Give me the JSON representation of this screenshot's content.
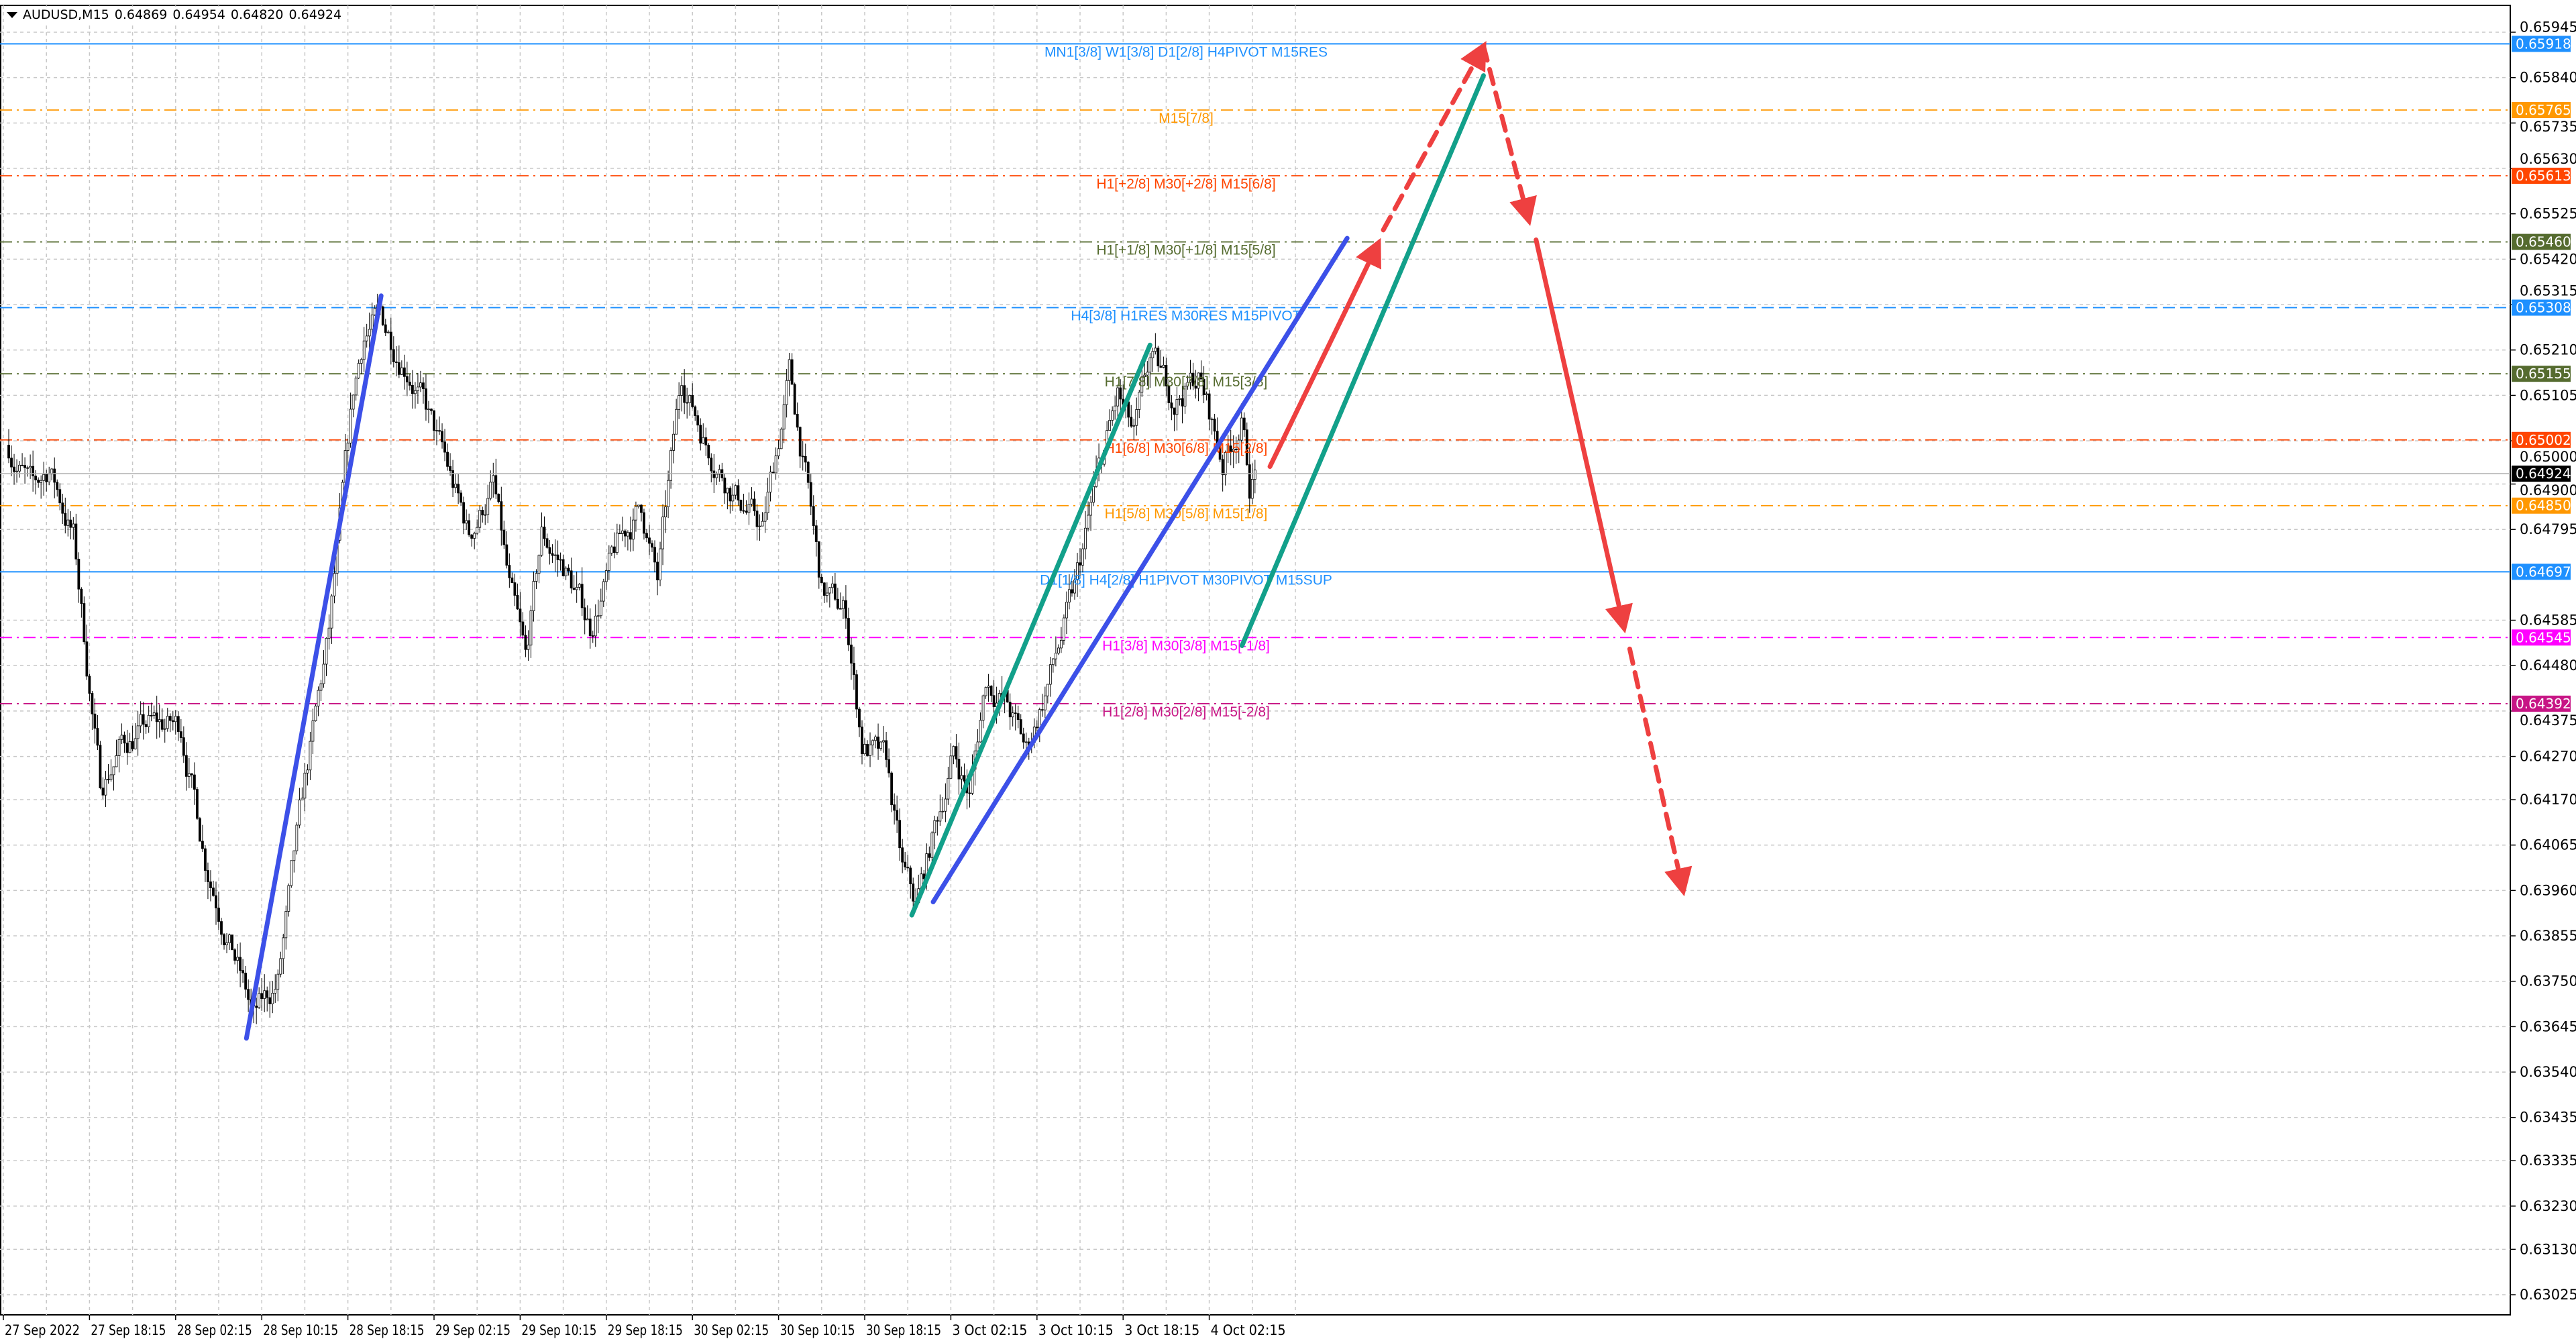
{
  "header": {
    "symbol": "AUDUSD,M15",
    "open": "0.64869",
    "high": "0.64954",
    "low": "0.64820",
    "close": "0.64924"
  },
  "chart_data": {
    "type": "candlestick",
    "ylim": [
      0.63,
      0.6598
    ],
    "y_ticks": [
      "0.65945",
      "0.65840",
      "0.65735",
      "0.65630",
      "0.65525",
      "0.65420",
      "0.65315",
      "0.65210",
      "0.65105",
      "0.65000",
      "0.64900",
      "0.64795",
      "0.64585",
      "0.64480",
      "0.64375",
      "0.64270",
      "0.64170",
      "0.64065",
      "0.63960",
      "0.63855",
      "0.63750",
      "0.63645",
      "0.63540",
      "0.63435",
      "0.63335",
      "0.63230",
      "0.63130",
      "0.63025"
    ],
    "x_ticks": [
      "27 Sep 2022",
      "27 Sep 18:15",
      "28 Sep 02:15",
      "28 Sep 10:15",
      "28 Sep 18:15",
      "29 Sep 02:15",
      "29 Sep 10:15",
      "29 Sep 18:15",
      "30 Sep 02:15",
      "30 Sep 10:15",
      "30 Sep 18:15",
      "3 Oct 02:15",
      "3 Oct 10:15",
      "3 Oct 18:15",
      "4 Oct 02:15"
    ],
    "grid": true,
    "current_price": {
      "value": "0.64924",
      "color": "#000000"
    },
    "levels": [
      {
        "price": "0.65918",
        "label": "MN1[3/8] W1[3/8] D1[2/8] H4PIVOT M15RES",
        "color": "#1e90ff",
        "style": "solid"
      },
      {
        "price": "0.65765",
        "label": "M15[7/8]",
        "color": "#ff9800",
        "style": "dashdot"
      },
      {
        "price": "0.65613",
        "label": "H1[+2/8] M30[+2/8] M15[6/8]",
        "color": "#ff4500",
        "style": "dashdot"
      },
      {
        "price": "0.65460",
        "label": "H1[+1/8] M30[+1/8] M15[5/8]",
        "color": "#556b2f",
        "style": "dashdot"
      },
      {
        "price": "0.65308",
        "label": "H4[3/8] H1RES M30RES M15PIVOT",
        "color": "#1e90ff",
        "style": "dashed"
      },
      {
        "price": "0.65155",
        "label": "H1[7/8] M30[7/8] M15[3/8]",
        "color": "#556b2f",
        "style": "dashdot"
      },
      {
        "price": "0.65002",
        "label": "H1[6/8] M30[6/8] M15[2/8]",
        "color": "#ff4500",
        "style": "dashdot"
      },
      {
        "price": "0.64850",
        "label": "H1[5/8] M30[5/8] M15[1/8]",
        "color": "#ff9800",
        "style": "dashdot"
      },
      {
        "price": "0.64697",
        "label": "D1[1/8] H4[2/8] H1PIVOT M30PIVOT M15SUP",
        "color": "#1e90ff",
        "style": "solid"
      },
      {
        "price": "0.64545",
        "label": "H1[3/8] M30[3/8] M15[-1/8]",
        "color": "#ff00ff",
        "style": "dashdot"
      },
      {
        "price": "0.64392",
        "label": "H1[2/8] M30[2/8] M15[-2/8]",
        "color": "#c71585",
        "style": "dashdot"
      }
    ],
    "price_path": [
      [
        "27 Sep 10:45",
        0.6499
      ],
      [
        "27 Sep 13:00",
        0.6488
      ],
      [
        "27 Sep 14:30",
        0.6494
      ],
      [
        "27 Sep 16:45",
        0.6478
      ],
      [
        "27 Sep 19:15",
        0.642
      ],
      [
        "27 Sep 21:15",
        0.643
      ],
      [
        "27 Sep 23:45",
        0.6434
      ],
      [
        "28 Sep 02:45",
        0.6434
      ],
      [
        "28 Sep 05:00",
        0.6404
      ],
      [
        "28 Sep 07:15",
        0.6385
      ],
      [
        "28 Sep 09:30",
        0.6366
      ],
      [
        "28 Sep 11:45",
        0.6375
      ],
      [
        "28 Sep 14:15",
        0.642
      ],
      [
        "28 Sep 16:30",
        0.6455
      ],
      [
        "28 Sep 18:45",
        0.651
      ],
      [
        "28 Sep 19:45",
        0.6525
      ],
      [
        "28 Sep 21:15",
        0.6528
      ],
      [
        "29 Sep 00:00",
        0.6517
      ],
      [
        "29 Sep 03:15",
        0.6495
      ],
      [
        "29 Sep 05:30",
        0.6478
      ],
      [
        "29 Sep 07:45",
        0.649
      ],
      [
        "29 Sep 09:15",
        0.6465
      ],
      [
        "29 Sep 10:45",
        0.6448
      ],
      [
        "29 Sep 12:15",
        0.6478
      ],
      [
        "29 Sep 14:30",
        0.647
      ],
      [
        "29 Sep 16:45",
        0.6457
      ],
      [
        "29 Sep 19:15",
        0.6475
      ],
      [
        "29 Sep 21:30",
        0.6485
      ],
      [
        "29 Sep 23:00",
        0.6467
      ],
      [
        "30 Sep 01:15",
        0.6515
      ],
      [
        "30 Sep 03:30",
        0.65
      ],
      [
        "30 Sep 05:45",
        0.649
      ],
      [
        "30 Sep 08:45",
        0.6479
      ],
      [
        "30 Sep 11:15",
        0.6515
      ],
      [
        "30 Sep 12:45",
        0.6492
      ],
      [
        "30 Sep 14:15",
        0.6465
      ],
      [
        "30 Sep 16:30",
        0.646
      ],
      [
        "30 Sep 18:00",
        0.643
      ],
      [
        "30 Sep 20:15",
        0.6425
      ],
      [
        "30 Sep 21:45",
        0.64
      ],
      [
        "30 Sep 23:00",
        0.6392
      ],
      [
        "3 Oct 00:45",
        0.641
      ],
      [
        "3 Oct 02:30",
        0.6428
      ],
      [
        "3 Oct 04:00",
        0.6418
      ],
      [
        "3 Oct 05:30",
        0.6445
      ],
      [
        "3 Oct 07:15",
        0.644
      ],
      [
        "3 Oct 09:15",
        0.6428
      ],
      [
        "3 Oct 11:45",
        0.6448
      ],
      [
        "3 Oct 13:45",
        0.6465
      ],
      [
        "3 Oct 15:45",
        0.649
      ],
      [
        "3 Oct 17:45",
        0.651
      ],
      [
        "3 Oct 19:15",
        0.65
      ],
      [
        "3 Oct 20:45",
        0.6518
      ],
      [
        "3 Oct 23:00",
        0.651
      ],
      [
        "4 Oct 01:15",
        0.6515
      ],
      [
        "4 Oct 03:30",
        0.6495
      ],
      [
        "4 Oct 05:15",
        0.6505
      ],
      [
        "4 Oct 06:00",
        0.649
      ],
      [
        "4 Oct 06:30",
        0.64924
      ]
    ],
    "drawings": {
      "channel_color": "#3c50e8",
      "parallel_color": "#12a08a",
      "forecast_color": "#ee4040"
    }
  }
}
